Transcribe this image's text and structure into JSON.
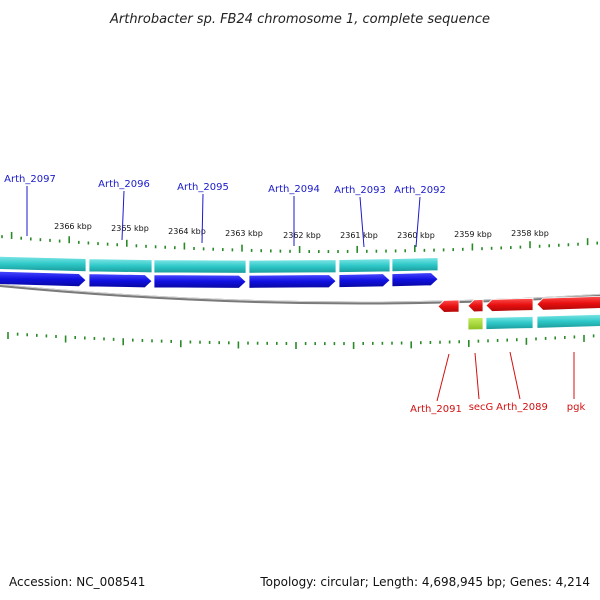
{
  "title": "Arthrobacter sp. FB24 chromosome 1, complete sequence",
  "footer": {
    "accession": "Accession: NC_008541",
    "summary": "Topology: circular; Length: 4,698,945 bp; Genes: 4,214"
  },
  "colors": {
    "forward_cds": "#1010e0",
    "forward_gene": "#2ec8c8",
    "reverse_cds": "#e81010",
    "reverse_gene": "#2ec8c8",
    "reverse_special": "#9acd32",
    "tick": "#2a8a2a",
    "backbone": "#8a8a8a",
    "label_fwd": "#1a1acc",
    "label_rev": "#d31010"
  },
  "ticks": [
    "2366 kbp",
    "2365 kbp",
    "2364 kbp",
    "2363 kbp",
    "2362 kbp",
    "2361 kbp",
    "2360 kbp",
    "2359 kbp",
    "2358 kbp"
  ],
  "forward_genes": [
    {
      "label": "Arth_2097"
    },
    {
      "label": "Arth_2096"
    },
    {
      "label": "Arth_2095"
    },
    {
      "label": "Arth_2094"
    },
    {
      "label": "Arth_2093"
    },
    {
      "label": "Arth_2092"
    }
  ],
  "reverse_genes": [
    {
      "label": "Arth_2091"
    },
    {
      "label": "secG"
    },
    {
      "label": "Arth_2089"
    },
    {
      "label": "pgk"
    }
  ]
}
